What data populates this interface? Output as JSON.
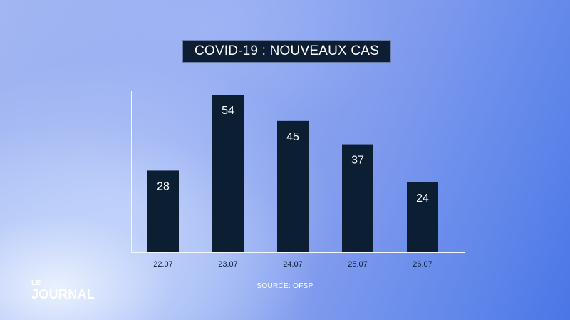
{
  "chart_data": {
    "type": "bar",
    "title": "COVID-19 : NOUVEAUX CAS",
    "categories": [
      "22.07",
      "23.07",
      "24.07",
      "25.07",
      "26.07"
    ],
    "values": [
      28,
      54,
      45,
      37,
      24
    ],
    "data_labels": [
      "28",
      "54",
      "45",
      "37",
      "24"
    ],
    "xlabel": "",
    "ylabel": "",
    "ylim": [
      0,
      60
    ],
    "grid": false,
    "legend": "none",
    "bar_color": "#0c1e32"
  },
  "source": "SOURCE: OFSP",
  "logo": {
    "line1": "LE",
    "line2": "JOURNAL"
  },
  "colors": {
    "title_background": "#0d1d33",
    "axis": "#f3f6fd",
    "text_dark": "#0f1e36"
  }
}
